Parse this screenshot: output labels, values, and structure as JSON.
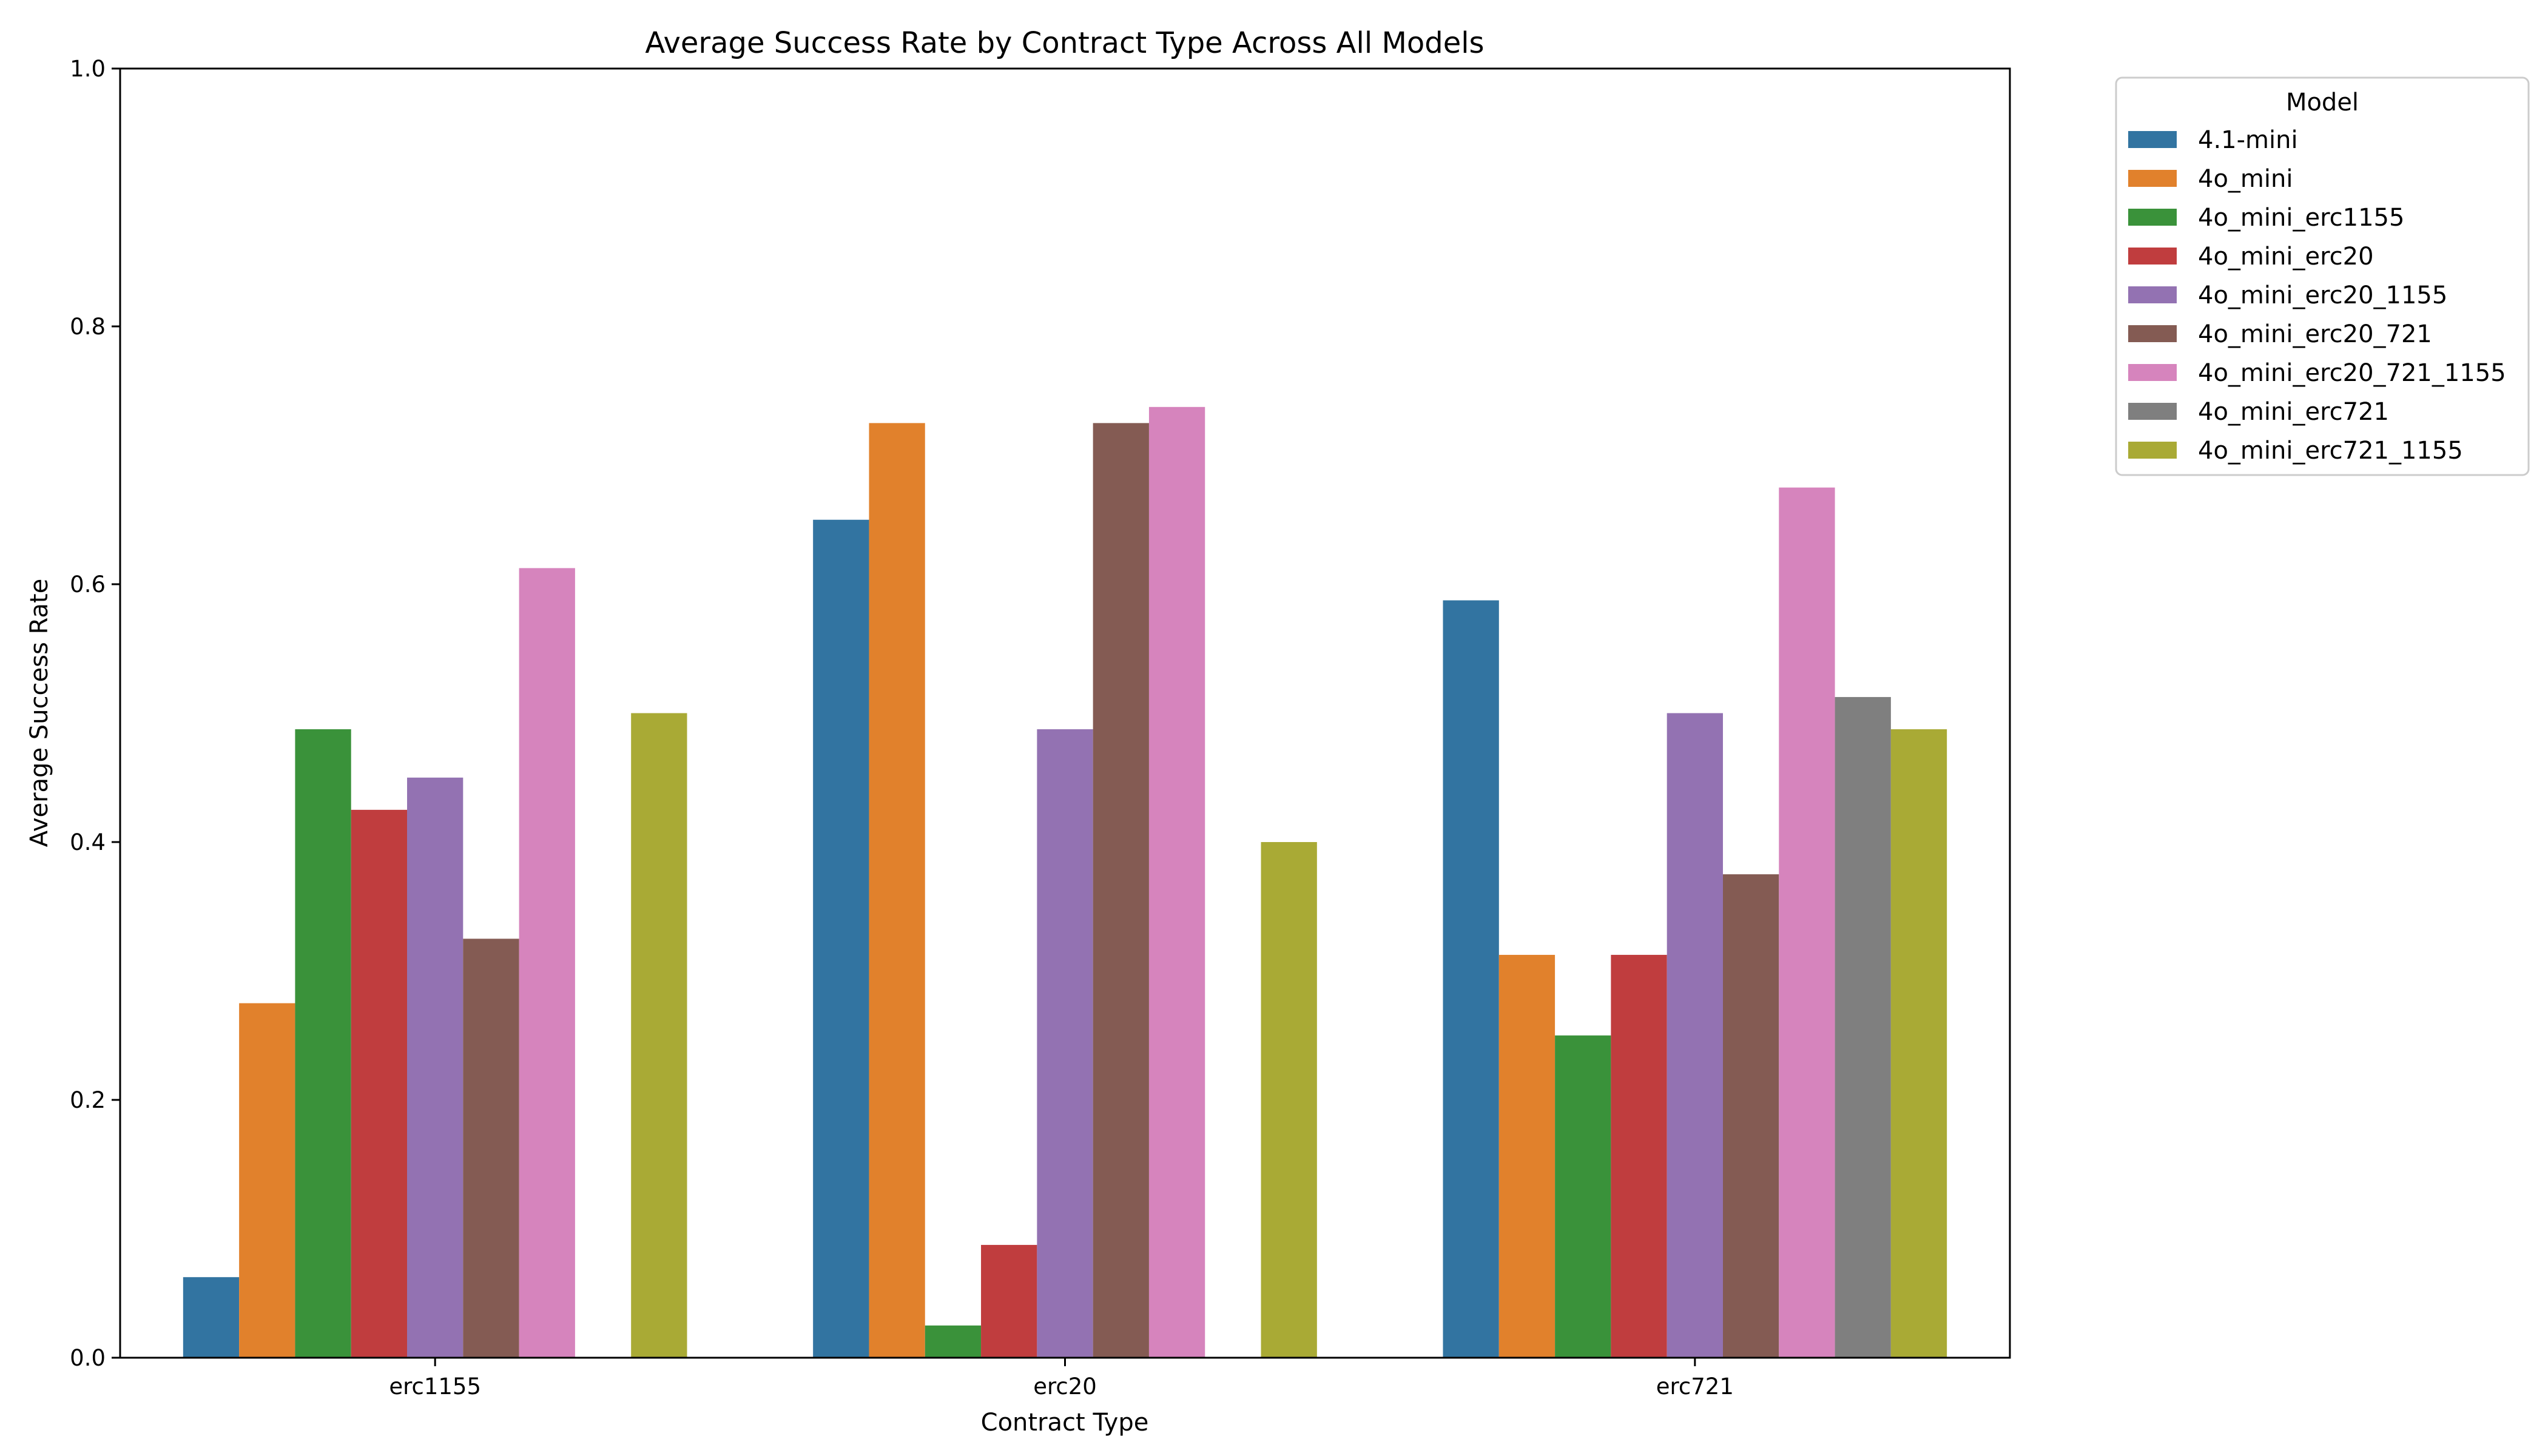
{
  "chart_data": {
    "type": "bar",
    "title": "Average Success Rate by Contract Type Across All Models",
    "xlabel": "Contract Type",
    "ylabel": "Average Success Rate",
    "ylim": [
      0,
      1.0
    ],
    "yticks": [
      "0.0",
      "0.2",
      "0.4",
      "0.6",
      "0.8",
      "1.0"
    ],
    "categories": [
      "erc1155",
      "erc20",
      "erc721"
    ],
    "legend_title": "Model",
    "legend_position": "outside-top-right",
    "grid": false,
    "series": [
      {
        "name": "4.1-mini",
        "color": "#3274a1",
        "values": [
          0.0625,
          0.65,
          0.5875
        ]
      },
      {
        "name": "4o_mini",
        "color": "#e1812c",
        "values": [
          0.275,
          0.725,
          0.3125
        ]
      },
      {
        "name": "4o_mini_erc1155",
        "color": "#3a923a",
        "values": [
          0.4875,
          0.025,
          0.25
        ]
      },
      {
        "name": "4o_mini_erc20",
        "color": "#c03d3e",
        "values": [
          0.425,
          0.0875,
          0.3125
        ]
      },
      {
        "name": "4o_mini_erc20_1155",
        "color": "#9372b2",
        "values": [
          0.45,
          0.4875,
          0.5
        ]
      },
      {
        "name": "4o_mini_erc20_721",
        "color": "#845b53",
        "values": [
          0.325,
          0.725,
          0.375
        ]
      },
      {
        "name": "4o_mini_erc20_721_1155",
        "color": "#d684bd",
        "values": [
          0.6125,
          0.7375,
          0.675
        ]
      },
      {
        "name": "4o_mini_erc721",
        "color": "#7f7f7f",
        "values": [
          null,
          null,
          0.5125
        ]
      },
      {
        "name": "4o_mini_erc721_1155",
        "color": "#a9aa35",
        "values": [
          0.5,
          0.4,
          0.4875
        ]
      }
    ]
  }
}
